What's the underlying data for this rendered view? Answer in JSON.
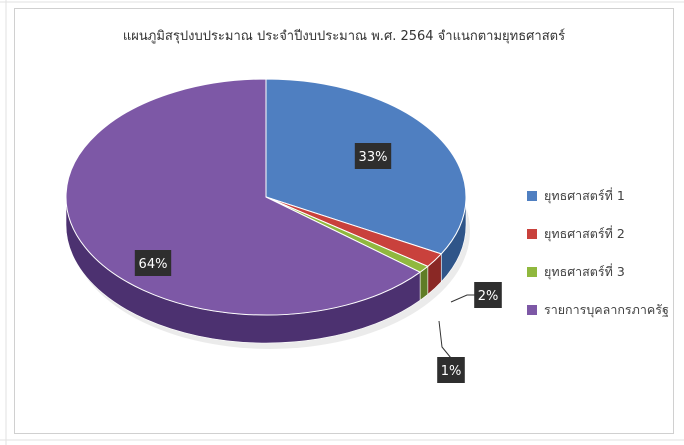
{
  "chart_data": {
    "type": "pie",
    "title": "แผนภูมิสรุปงบประมาณ ประจำปีงบประมาณ พ.ศ. 2564 จำแนกตามยุทธศาสตร์",
    "categories": [
      "ยุทธศาสตร์ที่ 1",
      "ยุทธศาสตร์ที่ 2",
      "ยุทธศาสตร์ที่ 3",
      "รายการบุคลากรภาครัฐ"
    ],
    "values": [
      33,
      2,
      1,
      64
    ],
    "data_labels": [
      "33%",
      "2%",
      "1%",
      "64%"
    ],
    "colors": [
      "#4f7fc1",
      "#c9413c",
      "#90b83e",
      "#7d58a6"
    ],
    "depth_colors": [
      "#2f5589",
      "#8a2825",
      "#5f7d26",
      "#4c3170"
    ],
    "legend_position": "right",
    "style": "3d"
  }
}
